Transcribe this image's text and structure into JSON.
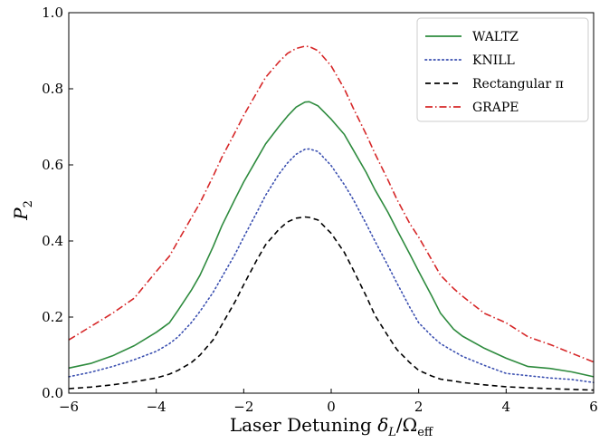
{
  "chart_data": {
    "type": "line",
    "xlabel": "Laser Detuning δ_L/Ω_eff",
    "xlabel_main": "Laser Detuning ",
    "xlabel_delta": "δ",
    "xlabel_delta_sub": "L",
    "xlabel_slash": "/Ω",
    "xlabel_omega_sub": "eff",
    "ylabel": "P_2",
    "ylabel_main": "P",
    "ylabel_sub": "2",
    "xlim": [
      -6,
      6
    ],
    "ylim": [
      0.0,
      1.0
    ],
    "x_ticks": [
      -6,
      -4,
      -2,
      0,
      2,
      4,
      6
    ],
    "x_tick_labels": [
      "−6",
      "−4",
      "−2",
      "0",
      "2",
      "4",
      "6"
    ],
    "y_ticks": [
      0.0,
      0.2,
      0.4,
      0.6,
      0.8,
      1.0
    ],
    "y_tick_labels": [
      "0.0",
      "0.2",
      "0.4",
      "0.6",
      "0.8",
      "1.0"
    ],
    "grid": false,
    "legend_position": "top-right",
    "series": [
      {
        "name": "WALTZ",
        "color": "#2e8b3e",
        "style": "solid",
        "x": [
          -6,
          -5.5,
          -5,
          -4.5,
          -4,
          -3.7,
          -3.5,
          -3.2,
          -3,
          -2.7,
          -2.5,
          -2.2,
          -2,
          -1.7,
          -1.5,
          -1.2,
          -1,
          -0.8,
          -0.6,
          -0.5,
          -0.3,
          0,
          0.3,
          0.5,
          0.8,
          1,
          1.3,
          1.5,
          1.8,
          2,
          2.3,
          2.5,
          2.8,
          3,
          3.5,
          4,
          4.5,
          5,
          5.5,
          6
        ],
        "y": [
          0.066,
          0.078,
          0.098,
          0.125,
          0.16,
          0.185,
          0.218,
          0.27,
          0.31,
          0.385,
          0.44,
          0.51,
          0.555,
          0.615,
          0.655,
          0.7,
          0.728,
          0.752,
          0.765,
          0.766,
          0.755,
          0.72,
          0.68,
          0.64,
          0.58,
          0.535,
          0.475,
          0.43,
          0.365,
          0.32,
          0.255,
          0.21,
          0.168,
          0.15,
          0.118,
          0.092,
          0.07,
          0.065,
          0.056,
          0.043
        ]
      },
      {
        "name": "KNILL",
        "color": "#3a4fb0",
        "style": "dotted",
        "x": [
          -6,
          -5.5,
          -5,
          -4.5,
          -4,
          -3.7,
          -3.5,
          -3.2,
          -3,
          -2.7,
          -2.5,
          -2.2,
          -2,
          -1.7,
          -1.5,
          -1.2,
          -1,
          -0.8,
          -0.6,
          -0.5,
          -0.3,
          0,
          0.3,
          0.5,
          0.8,
          1,
          1.3,
          1.5,
          1.8,
          2,
          2.3,
          2.5,
          2.8,
          3,
          3.5,
          4,
          4.5,
          5,
          5.5,
          6
        ],
        "y": [
          0.043,
          0.055,
          0.07,
          0.088,
          0.11,
          0.13,
          0.148,
          0.185,
          0.215,
          0.265,
          0.305,
          0.365,
          0.41,
          0.475,
          0.52,
          0.575,
          0.605,
          0.628,
          0.641,
          0.642,
          0.635,
          0.598,
          0.548,
          0.51,
          0.445,
          0.4,
          0.335,
          0.29,
          0.225,
          0.185,
          0.15,
          0.13,
          0.11,
          0.097,
          0.073,
          0.052,
          0.046,
          0.04,
          0.036,
          0.028
        ]
      },
      {
        "name": "Rectangular π",
        "color": "#000000",
        "style": "dashed",
        "x": [
          -6,
          -5.5,
          -5,
          -4.5,
          -4,
          -3.7,
          -3.5,
          -3.2,
          -3,
          -2.7,
          -2.5,
          -2.2,
          -2,
          -1.7,
          -1.5,
          -1.2,
          -1,
          -0.8,
          -0.6,
          -0.5,
          -0.3,
          0,
          0.3,
          0.5,
          0.8,
          1,
          1.3,
          1.5,
          1.8,
          2,
          2.3,
          2.5,
          2.8,
          3,
          3.5,
          4,
          4.5,
          5,
          5.5,
          6
        ],
        "y": [
          0.012,
          0.016,
          0.022,
          0.03,
          0.04,
          0.05,
          0.06,
          0.08,
          0.1,
          0.14,
          0.18,
          0.24,
          0.285,
          0.35,
          0.39,
          0.43,
          0.45,
          0.46,
          0.463,
          0.462,
          0.455,
          0.42,
          0.37,
          0.325,
          0.255,
          0.205,
          0.15,
          0.115,
          0.08,
          0.06,
          0.045,
          0.037,
          0.032,
          0.028,
          0.022,
          0.017,
          0.014,
          0.012,
          0.01,
          0.008
        ]
      },
      {
        "name": "GRAPE",
        "color": "#d62728",
        "style": "dashdot",
        "x": [
          -6,
          -5.5,
          -5,
          -4.5,
          -4,
          -3.7,
          -3.5,
          -3.2,
          -3,
          -2.7,
          -2.5,
          -2.2,
          -2,
          -1.7,
          -1.5,
          -1.2,
          -1,
          -0.8,
          -0.6,
          -0.5,
          -0.3,
          0,
          0.3,
          0.5,
          0.8,
          1,
          1.3,
          1.5,
          1.8,
          2,
          2.3,
          2.5,
          2.8,
          3,
          3.5,
          4,
          4.5,
          5,
          5.5,
          6
        ],
        "y": [
          0.14,
          0.175,
          0.21,
          0.25,
          0.32,
          0.36,
          0.4,
          0.46,
          0.5,
          0.57,
          0.62,
          0.685,
          0.73,
          0.79,
          0.83,
          0.87,
          0.893,
          0.906,
          0.912,
          0.911,
          0.9,
          0.86,
          0.8,
          0.75,
          0.68,
          0.63,
          0.56,
          0.51,
          0.445,
          0.41,
          0.35,
          0.31,
          0.275,
          0.255,
          0.21,
          0.185,
          0.148,
          0.128,
          0.105,
          0.082
        ]
      }
    ]
  }
}
